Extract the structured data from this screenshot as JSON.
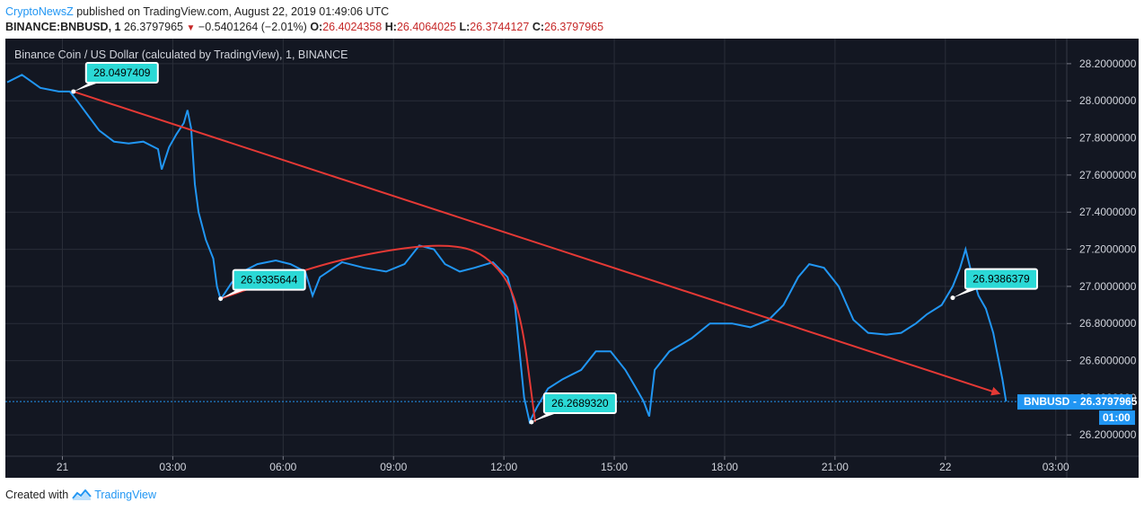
{
  "header": {
    "publisher": "CryptoNewsZ",
    "published_text": " published on TradingView.com, August 22, 2019 01:49:06 UTC",
    "symbol": "BINANCE:BNBUSD, 1",
    "last": "26.3797965",
    "change": "−0.5401264 (−2.01%)",
    "o_label": "O:",
    "o_value": "26.4024358",
    "h_label": "H:",
    "h_value": "26.4064025",
    "l_label": "L:",
    "l_value": "26.3744127",
    "c_label": "C:",
    "c_value": "26.3797965"
  },
  "footer": {
    "created_with": "Created with",
    "brand": "TradingView"
  },
  "colors": {
    "background": "#131722",
    "price_line": "#2196f3",
    "annotation": "#e53935",
    "callout": "#2bd9d6"
  },
  "chart_data": {
    "type": "line",
    "title": "Binance Coin / US Dollar (calculated by TradingView), 1, BINANCE",
    "price_axis": {
      "ticks": [
        "28.2000000",
        "28.0000000",
        "27.8000000",
        "27.6000000",
        "27.4000000",
        "27.2000000",
        "27.0000000",
        "26.8000000",
        "26.6000000",
        "26.4000000",
        "26.2000000"
      ],
      "ylim": [
        26.085,
        28.335
      ]
    },
    "time_axis": {
      "ticks": [
        "21",
        "03:00",
        "06:00",
        "09:00",
        "12:00",
        "15:00",
        "18:00",
        "21:00",
        "22",
        "03:00"
      ],
      "tick_hours": [
        0,
        3,
        6,
        9,
        12,
        15,
        18,
        21,
        24,
        27
      ],
      "xlim": [
        -1.55,
        27.3
      ]
    },
    "series": [
      {
        "color": "#2196f3",
        "points": [
          [
            -1.5,
            28.1
          ],
          [
            -1.1,
            28.14
          ],
          [
            -0.6,
            28.07
          ],
          [
            -0.1,
            28.05
          ],
          [
            0.2,
            28.05
          ],
          [
            0.4,
            28.0
          ],
          [
            0.7,
            27.92
          ],
          [
            1.0,
            27.84
          ],
          [
            1.4,
            27.78
          ],
          [
            1.8,
            27.77
          ],
          [
            2.2,
            27.78
          ],
          [
            2.6,
            27.74
          ],
          [
            2.7,
            27.63
          ],
          [
            2.9,
            27.75
          ],
          [
            3.1,
            27.82
          ],
          [
            3.3,
            27.88
          ],
          [
            3.4,
            27.95
          ],
          [
            3.5,
            27.85
          ],
          [
            3.6,
            27.55
          ],
          [
            3.7,
            27.4
          ],
          [
            3.9,
            27.25
          ],
          [
            4.1,
            27.15
          ],
          [
            4.2,
            27.0
          ],
          [
            4.3,
            26.93
          ],
          [
            4.6,
            27.02
          ],
          [
            4.9,
            27.08
          ],
          [
            5.3,
            27.12
          ],
          [
            5.8,
            27.14
          ],
          [
            6.2,
            27.12
          ],
          [
            6.6,
            27.08
          ],
          [
            6.8,
            26.95
          ],
          [
            7.0,
            27.05
          ],
          [
            7.6,
            27.13
          ],
          [
            8.2,
            27.1
          ],
          [
            8.8,
            27.08
          ],
          [
            9.3,
            27.12
          ],
          [
            9.7,
            27.22
          ],
          [
            10.1,
            27.2
          ],
          [
            10.4,
            27.12
          ],
          [
            10.8,
            27.08
          ],
          [
            11.2,
            27.1
          ],
          [
            11.7,
            27.13
          ],
          [
            12.1,
            27.05
          ],
          [
            12.3,
            26.9
          ],
          [
            12.45,
            26.6
          ],
          [
            12.55,
            26.4
          ],
          [
            12.7,
            26.27
          ],
          [
            12.9,
            26.35
          ],
          [
            13.2,
            26.45
          ],
          [
            13.6,
            26.5
          ],
          [
            14.1,
            26.55
          ],
          [
            14.5,
            26.65
          ],
          [
            14.9,
            26.65
          ],
          [
            15.3,
            26.55
          ],
          [
            15.6,
            26.45
          ],
          [
            15.8,
            26.38
          ],
          [
            15.95,
            26.3
          ],
          [
            16.1,
            26.55
          ],
          [
            16.5,
            26.65
          ],
          [
            17.1,
            26.72
          ],
          [
            17.6,
            26.8
          ],
          [
            18.2,
            26.8
          ],
          [
            18.7,
            26.78
          ],
          [
            19.2,
            26.82
          ],
          [
            19.6,
            26.9
          ],
          [
            20.0,
            27.05
          ],
          [
            20.3,
            27.12
          ],
          [
            20.7,
            27.1
          ],
          [
            21.1,
            27.0
          ],
          [
            21.5,
            26.82
          ],
          [
            21.9,
            26.75
          ],
          [
            22.4,
            26.74
          ],
          [
            22.8,
            26.75
          ],
          [
            23.2,
            26.8
          ],
          [
            23.5,
            26.85
          ],
          [
            23.9,
            26.9
          ],
          [
            24.2,
            27.0
          ],
          [
            24.4,
            27.1
          ],
          [
            24.55,
            27.2
          ],
          [
            24.7,
            27.08
          ],
          [
            24.9,
            26.95
          ],
          [
            25.1,
            26.88
          ],
          [
            25.3,
            26.75
          ],
          [
            25.45,
            26.6
          ],
          [
            25.55,
            26.5
          ],
          [
            25.65,
            26.38
          ]
        ]
      }
    ],
    "trend_line": {
      "from": [
        0.3,
        28.0497409
      ],
      "to": [
        25.5,
        26.42
      ],
      "color": "#e53935"
    },
    "arc": {
      "points": [
        [
          4.3,
          26.9335644
        ],
        [
          6.5,
          27.09
        ],
        [
          8.6,
          27.19
        ],
        [
          10.4,
          27.23
        ],
        [
          11.5,
          27.18
        ],
        [
          12.4,
          26.95
        ],
        [
          12.85,
          26.27
        ]
      ],
      "color": "#e53935"
    },
    "callouts": [
      {
        "label": "28.0497409",
        "at": [
          0.3,
          28.0497409
        ]
      },
      {
        "label": "26.9335644",
        "at": [
          4.3,
          26.9335644
        ]
      },
      {
        "label": "26.2689320",
        "at": [
          12.75,
          26.268932
        ]
      },
      {
        "label": "26.9386379",
        "at": [
          24.2,
          26.9386379
        ]
      }
    ],
    "last_price": {
      "symbol": "BNBUSD",
      "value": "26.3797965",
      "time": "01:00"
    }
  }
}
